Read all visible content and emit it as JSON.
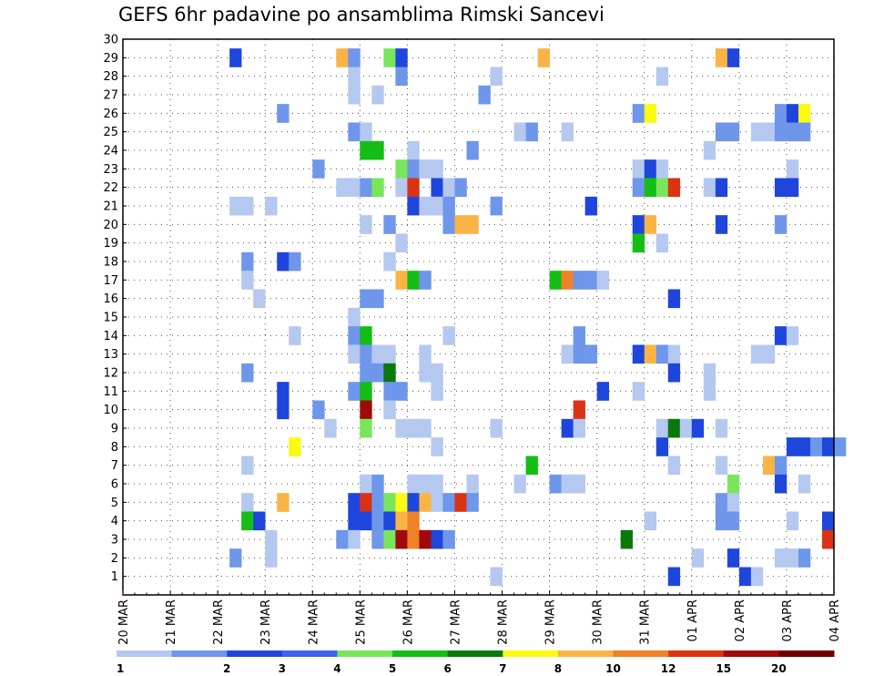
{
  "chart_data": {
    "type": "heatmap",
    "title": "GEFS 6hr padavine po ansamblima Rimski Sancevi",
    "xlabel": "",
    "ylabel": "",
    "x_ticks": [
      "20 MAR",
      "21 MAR",
      "22 MAR",
      "23 MAR",
      "24 MAR",
      "25 MAR",
      "26 MAR",
      "27 MAR",
      "28 MAR",
      "29 MAR",
      "30 MAR",
      "31 MAR",
      "01 APR",
      "02 APR",
      "03 APR",
      "04 APR"
    ],
    "y_ticks": [
      1,
      2,
      3,
      4,
      5,
      6,
      7,
      8,
      9,
      10,
      11,
      12,
      13,
      14,
      15,
      16,
      17,
      18,
      19,
      20,
      21,
      22,
      23,
      24,
      25,
      26,
      27,
      28,
      29,
      30
    ],
    "x_unit": "6-hour steps since 20 MAR 00Z",
    "xlim": [
      0,
      60
    ],
    "ylim": [
      0,
      30
    ],
    "grid": true,
    "colorbar": {
      "placement": "bottom",
      "labels": [
        "1",
        "2",
        "3",
        "4",
        "5",
        "6",
        "7",
        "8",
        "10",
        "12",
        "15",
        "20"
      ],
      "colors": [
        "#b4c8f0",
        "#6e96eb",
        "#1e46dc",
        "#3c64f0",
        "#78e65a",
        "#14be14",
        "#0a780a",
        "#fafa14",
        "#fab446",
        "#f08228",
        "#dc3214",
        "#a00a0a",
        "#6e0000"
      ]
    },
    "cells": [
      [
        9.5,
        29,
        2
      ],
      [
        18.5,
        29,
        8
      ],
      [
        19.5,
        29,
        1
      ],
      [
        22.5,
        29,
        4
      ],
      [
        23.5,
        29,
        2
      ],
      [
        35.5,
        29,
        8
      ],
      [
        50.5,
        29,
        8
      ],
      [
        51.5,
        29,
        2
      ],
      [
        31.5,
        28,
        0
      ],
      [
        23.5,
        28,
        1
      ],
      [
        45.5,
        28,
        0
      ],
      [
        19.5,
        28,
        0
      ],
      [
        21.5,
        27,
        0
      ],
      [
        19.5,
        27,
        0
      ],
      [
        30.5,
        27,
        1
      ],
      [
        13.5,
        26,
        1
      ],
      [
        43.5,
        26,
        1
      ],
      [
        44.5,
        26,
        7
      ],
      [
        55.5,
        26,
        1
      ],
      [
        56.5,
        26,
        2
      ],
      [
        57.5,
        26,
        7
      ],
      [
        19.5,
        25,
        1
      ],
      [
        20.5,
        25,
        0
      ],
      [
        33.5,
        25,
        0
      ],
      [
        34.5,
        25,
        1
      ],
      [
        37.5,
        25,
        0
      ],
      [
        50.5,
        25,
        1
      ],
      [
        51.5,
        25,
        1
      ],
      [
        53.5,
        25,
        0
      ],
      [
        54.5,
        25,
        0
      ],
      [
        55.5,
        25,
        1
      ],
      [
        56.5,
        25,
        1
      ],
      [
        57.5,
        25,
        1
      ],
      [
        20.5,
        24,
        5
      ],
      [
        21.5,
        24,
        5
      ],
      [
        24.5,
        24,
        0
      ],
      [
        29.5,
        24,
        1
      ],
      [
        49.5,
        24,
        0
      ],
      [
        16.5,
        23,
        1
      ],
      [
        23.5,
        23,
        4
      ],
      [
        24.5,
        23,
        1
      ],
      [
        25.5,
        23,
        0
      ],
      [
        26.5,
        23,
        0
      ],
      [
        43.5,
        23,
        0
      ],
      [
        44.5,
        23,
        2
      ],
      [
        45.5,
        23,
        0
      ],
      [
        56.5,
        23,
        0
      ],
      [
        18.5,
        22,
        0
      ],
      [
        19.5,
        22,
        0
      ],
      [
        20.5,
        22,
        1
      ],
      [
        21.5,
        22,
        4
      ],
      [
        23.5,
        22,
        0
      ],
      [
        24.5,
        22,
        10
      ],
      [
        26.5,
        22,
        2
      ],
      [
        27.5,
        22,
        0
      ],
      [
        28.5,
        22,
        1
      ],
      [
        43.5,
        22,
        1
      ],
      [
        44.5,
        22,
        5
      ],
      [
        45.5,
        22,
        4
      ],
      [
        46.5,
        22,
        10
      ],
      [
        49.5,
        22,
        0
      ],
      [
        50.5,
        22,
        2
      ],
      [
        55.5,
        22,
        2
      ],
      [
        56.5,
        22,
        2
      ],
      [
        9.5,
        21,
        0
      ],
      [
        10.5,
        21,
        0
      ],
      [
        12.5,
        21,
        0
      ],
      [
        24.5,
        21,
        2
      ],
      [
        25.5,
        21,
        0
      ],
      [
        26.5,
        21,
        0
      ],
      [
        27.5,
        21,
        1
      ],
      [
        31.5,
        21,
        1
      ],
      [
        39.5,
        21,
        2
      ],
      [
        20.5,
        20,
        0
      ],
      [
        22.5,
        20,
        1
      ],
      [
        27.5,
        20,
        1
      ],
      [
        28.5,
        20,
        8
      ],
      [
        29.5,
        20,
        8
      ],
      [
        43.5,
        20,
        2
      ],
      [
        44.5,
        20,
        8
      ],
      [
        50.5,
        20,
        2
      ],
      [
        55.5,
        20,
        1
      ],
      [
        23.5,
        19,
        0
      ],
      [
        43.5,
        19,
        5
      ],
      [
        45.5,
        19,
        0
      ],
      [
        10.5,
        18,
        1
      ],
      [
        13.5,
        18,
        2
      ],
      [
        14.5,
        18,
        1
      ],
      [
        22.5,
        18,
        0
      ],
      [
        10.5,
        17,
        0
      ],
      [
        23.5,
        17,
        8
      ],
      [
        24.5,
        17,
        5
      ],
      [
        25.5,
        17,
        1
      ],
      [
        36.5,
        17,
        5
      ],
      [
        37.5,
        17,
        9
      ],
      [
        38.5,
        17,
        1
      ],
      [
        39.5,
        17,
        1
      ],
      [
        40.5,
        17,
        0
      ],
      [
        11.5,
        16,
        0
      ],
      [
        20.5,
        16,
        1
      ],
      [
        21.5,
        16,
        1
      ],
      [
        46.5,
        16,
        2
      ],
      [
        19.5,
        15,
        0
      ],
      [
        14.5,
        14,
        0
      ],
      [
        19.5,
        14,
        1
      ],
      [
        20.5,
        14,
        5
      ],
      [
        27.5,
        14,
        0
      ],
      [
        38.5,
        14,
        1
      ],
      [
        55.5,
        14,
        2
      ],
      [
        56.5,
        14,
        0
      ],
      [
        19.5,
        13,
        0
      ],
      [
        20.5,
        13,
        1
      ],
      [
        21.5,
        13,
        0
      ],
      [
        22.5,
        13,
        0
      ],
      [
        25.5,
        13,
        0
      ],
      [
        37.5,
        13,
        0
      ],
      [
        38.5,
        13,
        1
      ],
      [
        39.5,
        13,
        1
      ],
      [
        43.5,
        13,
        2
      ],
      [
        44.5,
        13,
        8
      ],
      [
        45.5,
        13,
        1
      ],
      [
        46.5,
        13,
        0
      ],
      [
        53.5,
        13,
        0
      ],
      [
        54.5,
        13,
        0
      ],
      [
        10.5,
        12,
        1
      ],
      [
        20.5,
        12,
        1
      ],
      [
        21.5,
        12,
        1
      ],
      [
        22.5,
        12,
        6
      ],
      [
        25.5,
        12,
        0
      ],
      [
        26.5,
        12,
        0
      ],
      [
        46.5,
        12,
        2
      ],
      [
        49.5,
        12,
        0
      ],
      [
        13.5,
        11,
        2
      ],
      [
        19.5,
        11,
        1
      ],
      [
        20.5,
        11,
        5
      ],
      [
        22.5,
        11,
        1
      ],
      [
        23.5,
        11,
        1
      ],
      [
        26.5,
        11,
        0
      ],
      [
        40.5,
        11,
        2
      ],
      [
        43.5,
        11,
        0
      ],
      [
        49.5,
        11,
        0
      ],
      [
        13.5,
        10,
        2
      ],
      [
        16.5,
        10,
        1
      ],
      [
        20.5,
        10,
        11
      ],
      [
        22.5,
        10,
        0
      ],
      [
        38.5,
        10,
        10
      ],
      [
        17.5,
        9,
        0
      ],
      [
        20.5,
        9,
        4
      ],
      [
        23.5,
        9,
        0
      ],
      [
        24.5,
        9,
        0
      ],
      [
        25.5,
        9,
        0
      ],
      [
        31.5,
        9,
        0
      ],
      [
        37.5,
        9,
        2
      ],
      [
        38.5,
        9,
        0
      ],
      [
        45.5,
        9,
        0
      ],
      [
        46.5,
        9,
        6
      ],
      [
        47.5,
        9,
        0
      ],
      [
        48.5,
        9,
        2
      ],
      [
        50.5,
        9,
        0
      ],
      [
        14.5,
        8,
        7
      ],
      [
        26.5,
        8,
        0
      ],
      [
        45.5,
        8,
        2
      ],
      [
        56.5,
        8,
        2
      ],
      [
        57.5,
        8,
        2
      ],
      [
        58.5,
        8,
        1
      ],
      [
        59.5,
        8,
        2
      ],
      [
        60.5,
        8,
        1
      ],
      [
        10.5,
        7,
        0
      ],
      [
        34.5,
        7,
        5
      ],
      [
        46.5,
        7,
        0
      ],
      [
        50.5,
        7,
        0
      ],
      [
        54.5,
        7,
        8
      ],
      [
        55.5,
        7,
        1
      ],
      [
        20.5,
        6,
        0
      ],
      [
        21.5,
        6,
        1
      ],
      [
        24.5,
        6,
        0
      ],
      [
        25.5,
        6,
        0
      ],
      [
        26.5,
        6,
        0
      ],
      [
        29.5,
        6,
        0
      ],
      [
        33.5,
        6,
        0
      ],
      [
        36.5,
        6,
        1
      ],
      [
        37.5,
        6,
        0
      ],
      [
        38.5,
        6,
        0
      ],
      [
        51.5,
        6,
        4
      ],
      [
        55.5,
        6,
        2
      ],
      [
        57.5,
        6,
        0
      ],
      [
        10.5,
        5,
        0
      ],
      [
        13.5,
        5,
        8
      ],
      [
        19.5,
        5,
        2
      ],
      [
        20.5,
        5,
        10
      ],
      [
        21.5,
        5,
        1
      ],
      [
        22.5,
        5,
        4
      ],
      [
        23.5,
        5,
        7
      ],
      [
        24.5,
        5,
        2
      ],
      [
        25.5,
        5,
        8
      ],
      [
        26.5,
        5,
        0
      ],
      [
        27.5,
        5,
        1
      ],
      [
        28.5,
        5,
        10
      ],
      [
        29.5,
        5,
        1
      ],
      [
        50.5,
        5,
        1
      ],
      [
        51.5,
        5,
        0
      ],
      [
        10.5,
        4,
        5
      ],
      [
        11.5,
        4,
        2
      ],
      [
        19.5,
        4,
        2
      ],
      [
        20.5,
        4,
        2
      ],
      [
        21.5,
        4,
        1
      ],
      [
        22.5,
        4,
        2
      ],
      [
        23.5,
        4,
        8
      ],
      [
        24.5,
        4,
        9
      ],
      [
        44.5,
        4,
        0
      ],
      [
        50.5,
        4,
        1
      ],
      [
        51.5,
        4,
        1
      ],
      [
        56.5,
        4,
        0
      ],
      [
        59.5,
        4,
        2
      ],
      [
        12.5,
        3,
        0
      ],
      [
        18.5,
        3,
        1
      ],
      [
        19.5,
        3,
        0
      ],
      [
        21.5,
        3,
        1
      ],
      [
        22.5,
        3,
        4
      ],
      [
        23.5,
        3,
        11
      ],
      [
        24.5,
        3,
        9
      ],
      [
        25.5,
        3,
        11
      ],
      [
        26.5,
        3,
        2
      ],
      [
        27.5,
        3,
        1
      ],
      [
        42.5,
        3,
        6
      ],
      [
        59.5,
        3,
        10
      ],
      [
        9.5,
        2,
        1
      ],
      [
        12.5,
        2,
        0
      ],
      [
        48.5,
        2,
        0
      ],
      [
        51.5,
        2,
        2
      ],
      [
        55.5,
        2,
        0
      ],
      [
        56.5,
        2,
        0
      ],
      [
        57.5,
        2,
        1
      ],
      [
        31.5,
        1,
        0
      ],
      [
        46.5,
        1,
        2
      ],
      [
        52.5,
        1,
        2
      ],
      [
        53.5,
        1,
        0
      ]
    ]
  }
}
